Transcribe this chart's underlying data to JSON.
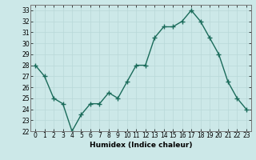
{
  "x": [
    0,
    1,
    2,
    3,
    4,
    5,
    6,
    7,
    8,
    9,
    10,
    11,
    12,
    13,
    14,
    15,
    16,
    17,
    18,
    19,
    20,
    21,
    22,
    23
  ],
  "y": [
    28,
    27,
    25,
    24.5,
    22,
    23.5,
    24.5,
    24.5,
    25.5,
    25,
    26.5,
    28,
    28,
    30.5,
    31.5,
    31.5,
    32,
    33,
    32,
    30.5,
    29,
    26.5,
    25,
    24
  ],
  "line_color": "#1a6b5a",
  "marker": "+",
  "marker_size": 4,
  "bg_color": "#cce8e8",
  "grid_color": "#b8d8d8",
  "xlabel": "Humidex (Indice chaleur)",
  "ylim": [
    22,
    33.5
  ],
  "xlim": [
    -0.5,
    23.5
  ],
  "yticks": [
    22,
    23,
    24,
    25,
    26,
    27,
    28,
    29,
    30,
    31,
    32,
    33
  ],
  "xticks": [
    0,
    1,
    2,
    3,
    4,
    5,
    6,
    7,
    8,
    9,
    10,
    11,
    12,
    13,
    14,
    15,
    16,
    17,
    18,
    19,
    20,
    21,
    22,
    23
  ],
  "tick_fontsize": 5.5,
  "xlabel_fontsize": 6.5,
  "linewidth": 1.0,
  "marker_color": "#1a6b5a"
}
